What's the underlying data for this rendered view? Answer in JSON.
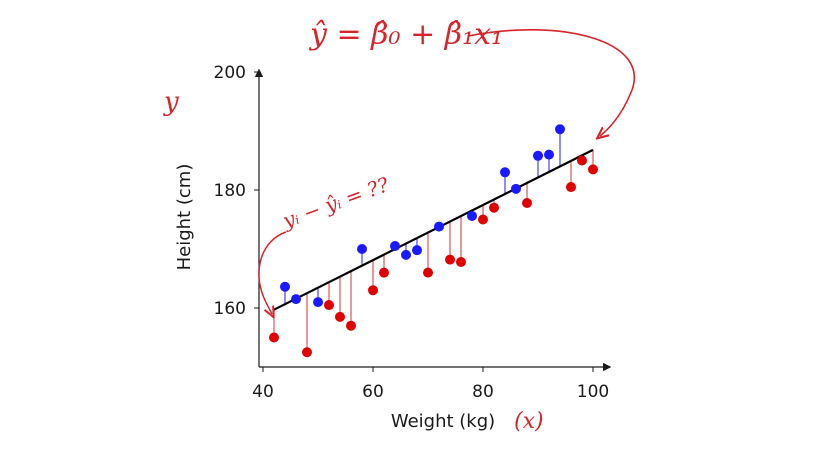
{
  "chart_data": {
    "type": "scatter",
    "xlabel": "Weight (kg)",
    "ylabel": "Height (cm)",
    "xlim": [
      40,
      100
    ],
    "ylim": [
      150,
      200
    ],
    "xticks": [
      40,
      60,
      80,
      100
    ],
    "yticks": [
      160,
      180,
      200
    ],
    "grid": false,
    "regression_line": {
      "intercept": 140.1,
      "slope": 0.467,
      "color": "#000000"
    },
    "series": [
      {
        "color": "#1a1aff",
        "residual_color": "#4444ff",
        "points": [
          {
            "x": 44,
            "y": 163.6
          },
          {
            "x": 46,
            "y": 161.5
          },
          {
            "x": 50,
            "y": 161.0
          },
          {
            "x": 58,
            "y": 170.0
          },
          {
            "x": 64,
            "y": 170.5
          },
          {
            "x": 66,
            "y": 169.0
          },
          {
            "x": 68,
            "y": 169.8
          },
          {
            "x": 72,
            "y": 173.8
          },
          {
            "x": 78,
            "y": 175.6
          },
          {
            "x": 84,
            "y": 183.0
          },
          {
            "x": 86,
            "y": 180.2
          },
          {
            "x": 90,
            "y": 185.8
          },
          {
            "x": 92,
            "y": 186.0
          },
          {
            "x": 94,
            "y": 190.3
          }
        ]
      },
      {
        "color": "#e00000",
        "residual_color": "#e05555",
        "points": [
          {
            "x": 42,
            "y": 155.0
          },
          {
            "x": 48,
            "y": 152.5
          },
          {
            "x": 52,
            "y": 160.5
          },
          {
            "x": 54,
            "y": 158.5
          },
          {
            "x": 56,
            "y": 157.0
          },
          {
            "x": 60,
            "y": 163.0
          },
          {
            "x": 62,
            "y": 166.0
          },
          {
            "x": 70,
            "y": 166.0
          },
          {
            "x": 74,
            "y": 168.2
          },
          {
            "x": 76,
            "y": 167.8
          },
          {
            "x": 80,
            "y": 175.0
          },
          {
            "x": 82,
            "y": 177.0
          },
          {
            "x": 88,
            "y": 177.8
          },
          {
            "x": 96,
            "y": 180.5
          },
          {
            "x": 98,
            "y": 185.0
          },
          {
            "x": 100,
            "y": 183.5
          }
        ]
      }
    ]
  },
  "annotations": {
    "model_equation": "ŷ = β̂₀ + β̂₁x₁",
    "residual_equation": "yᵢ − ŷᵢ = ??",
    "y_axis_symbol": "y",
    "x_axis_symbol": "(x)"
  },
  "colors": {
    "annotation": "#d8232a",
    "axis": "#1a1a1a"
  }
}
